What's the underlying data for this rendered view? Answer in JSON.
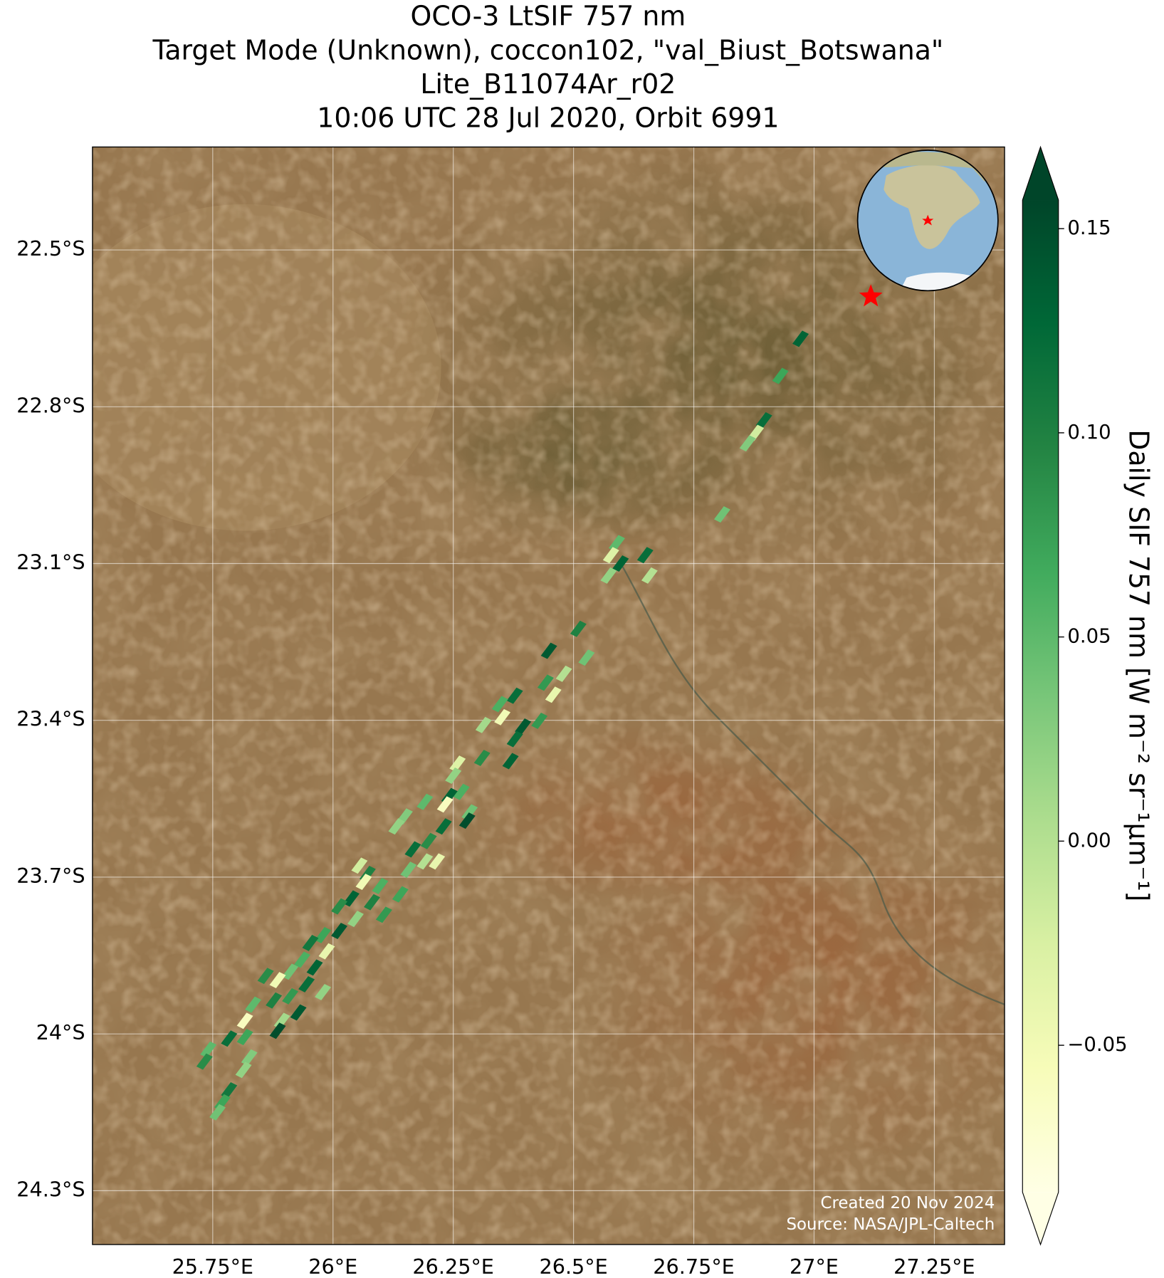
{
  "chart_data": {
    "type": "map",
    "title": [
      "OCO-3 LtSIF 757 nm",
      "Target Mode (Unknown), coccon102, \"val_Biust_Botswana\"",
      "Lite_B11074Ar_r02",
      "10:06 UTC 28 Jul 2020, Orbit 6991"
    ],
    "xlim": [
      25.5,
      27.396
    ],
    "ylim": [
      -24.403,
      -22.303
    ],
    "xticks": [
      {
        "value": 25.75,
        "label": "25.75°E"
      },
      {
        "value": 26,
        "label": "26°E"
      },
      {
        "value": 26.25,
        "label": "26.25°E"
      },
      {
        "value": 26.5,
        "label": "26.5°E"
      },
      {
        "value": 26.75,
        "label": "26.75°E"
      },
      {
        "value": 27,
        "label": "27°E"
      },
      {
        "value": 27.25,
        "label": "27.25°E"
      }
    ],
    "yticks": [
      {
        "value": -22.5,
        "label": "22.5°S"
      },
      {
        "value": -22.8,
        "label": "22.8°S"
      },
      {
        "value": -23.1,
        "label": "23.1°S"
      },
      {
        "value": -23.4,
        "label": "23.4°S"
      },
      {
        "value": -23.7,
        "label": "23.7°S"
      },
      {
        "value": -24,
        "label": "24°S"
      },
      {
        "value": -24.3,
        "label": "24.3°S"
      }
    ],
    "grid": true,
    "target": {
      "lon": 27.118,
      "lat": -22.589,
      "color": "#ff0000"
    },
    "soundings": [
      {
        "lon": 26.972,
        "lat": -22.67,
        "sif": 0.13
      },
      {
        "lon": 26.93,
        "lat": -22.741,
        "sif": 0.07
      },
      {
        "lon": 26.896,
        "lat": -22.826,
        "sif": 0.12
      },
      {
        "lon": 26.879,
        "lat": -22.85,
        "sif": -0.02
      },
      {
        "lon": 26.862,
        "lat": -22.87,
        "sif": 0.03
      },
      {
        "lon": 26.809,
        "lat": -23.006,
        "sif": 0.04
      },
      {
        "lon": 26.649,
        "lat": -23.084,
        "sif": 0.12
      },
      {
        "lon": 26.658,
        "lat": -23.123,
        "sif": 0.0
      },
      {
        "lon": 26.59,
        "lat": -23.061,
        "sif": 0.05
      },
      {
        "lon": 26.578,
        "lat": -23.084,
        "sif": -0.03
      },
      {
        "lon": 26.573,
        "lat": -23.123,
        "sif": 0.02
      },
      {
        "lon": 26.598,
        "lat": -23.1,
        "sif": 0.13
      },
      {
        "lon": 26.51,
        "lat": -23.225,
        "sif": 0.1
      },
      {
        "lon": 26.449,
        "lat": -23.267,
        "sif": 0.14
      },
      {
        "lon": 26.527,
        "lat": -23.28,
        "sif": 0.04
      },
      {
        "lon": 26.48,
        "lat": -23.311,
        "sif": 0.0
      },
      {
        "lon": 26.442,
        "lat": -23.328,
        "sif": 0.08
      },
      {
        "lon": 26.458,
        "lat": -23.351,
        "sif": -0.04
      },
      {
        "lon": 26.378,
        "lat": -23.353,
        "sif": 0.12
      },
      {
        "lon": 26.347,
        "lat": -23.369,
        "sif": 0.06
      },
      {
        "lon": 26.352,
        "lat": -23.394,
        "sif": -0.05
      },
      {
        "lon": 26.395,
        "lat": -23.412,
        "sif": 0.14
      },
      {
        "lon": 26.429,
        "lat": -23.401,
        "sif": 0.08
      },
      {
        "lon": 26.378,
        "lat": -23.436,
        "sif": 0.12
      },
      {
        "lon": 26.313,
        "lat": -23.409,
        "sif": 0.01
      },
      {
        "lon": 26.369,
        "lat": -23.478,
        "sif": 0.13
      },
      {
        "lon": 26.31,
        "lat": -23.472,
        "sif": 0.09
      },
      {
        "lon": 26.259,
        "lat": -23.483,
        "sif": -0.03
      },
      {
        "lon": 26.25,
        "lat": -23.506,
        "sif": 0.02
      },
      {
        "lon": 26.267,
        "lat": -23.537,
        "sif": 0.06
      },
      {
        "lon": 26.242,
        "lat": -23.545,
        "sif": 0.13
      },
      {
        "lon": 26.191,
        "lat": -23.556,
        "sif": 0.05
      },
      {
        "lon": 26.233,
        "lat": -23.561,
        "sif": -0.06
      },
      {
        "lon": 26.284,
        "lat": -23.576,
        "sif": 0.04
      },
      {
        "lon": 26.279,
        "lat": -23.592,
        "sif": 0.15
      },
      {
        "lon": 26.23,
        "lat": -23.603,
        "sif": 0.12
      },
      {
        "lon": 26.149,
        "lat": -23.584,
        "sif": 0.03
      },
      {
        "lon": 26.132,
        "lat": -23.603,
        "sif": 0.02
      },
      {
        "lon": 26.199,
        "lat": -23.631,
        "sif": 0.09
      },
      {
        "lon": 26.166,
        "lat": -23.647,
        "sif": 0.12
      },
      {
        "lon": 26.191,
        "lat": -23.67,
        "sif": 0.0
      },
      {
        "lon": 26.216,
        "lat": -23.67,
        "sif": -0.04
      },
      {
        "lon": 26.157,
        "lat": -23.686,
        "sif": 0.04
      },
      {
        "lon": 26.055,
        "lat": -23.678,
        "sif": -0.02
      },
      {
        "lon": 26.072,
        "lat": -23.694,
        "sif": 0.1
      },
      {
        "lon": 26.064,
        "lat": -23.709,
        "sif": -0.05
      },
      {
        "lon": 26.098,
        "lat": -23.717,
        "sif": 0.06
      },
      {
        "lon": 26.14,
        "lat": -23.733,
        "sif": 0.07
      },
      {
        "lon": 26.038,
        "lat": -23.741,
        "sif": 0.13
      },
      {
        "lon": 26.013,
        "lat": -23.756,
        "sif": 0.09
      },
      {
        "lon": 26.081,
        "lat": -23.748,
        "sif": 0.1
      },
      {
        "lon": 26.106,
        "lat": -23.772,
        "sif": 0.08
      },
      {
        "lon": 26.047,
        "lat": -23.78,
        "sif": 0.02
      },
      {
        "lon": 26.013,
        "lat": -23.803,
        "sif": 0.14
      },
      {
        "lon": 25.979,
        "lat": -23.811,
        "sif": 0.07
      },
      {
        "lon": 25.953,
        "lat": -23.826,
        "sif": 0.11
      },
      {
        "lon": 25.987,
        "lat": -23.842,
        "sif": -0.04
      },
      {
        "lon": 25.936,
        "lat": -23.858,
        "sif": 0.06
      },
      {
        "lon": 25.962,
        "lat": -23.873,
        "sif": 0.13
      },
      {
        "lon": 25.911,
        "lat": -23.881,
        "sif": 0.04
      },
      {
        "lon": 25.885,
        "lat": -23.897,
        "sif": -0.05
      },
      {
        "lon": 25.86,
        "lat": -23.889,
        "sif": 0.09
      },
      {
        "lon": 25.945,
        "lat": -23.905,
        "sif": 0.12
      },
      {
        "lon": 25.979,
        "lat": -23.92,
        "sif": 0.02
      },
      {
        "lon": 25.911,
        "lat": -23.928,
        "sif": 0.08
      },
      {
        "lon": 25.877,
        "lat": -23.936,
        "sif": 0.1
      },
      {
        "lon": 25.834,
        "lat": -23.944,
        "sif": 0.05
      },
      {
        "lon": 25.817,
        "lat": -23.975,
        "sif": -0.06
      },
      {
        "lon": 25.894,
        "lat": -23.975,
        "sif": 0.01
      },
      {
        "lon": 25.928,
        "lat": -23.959,
        "sif": 0.14
      },
      {
        "lon": 25.885,
        "lat": -23.994,
        "sif": 0.15
      },
      {
        "lon": 25.817,
        "lat": -24.006,
        "sif": 0.07
      },
      {
        "lon": 25.784,
        "lat": -24.009,
        "sif": 0.12
      },
      {
        "lon": 25.741,
        "lat": -24.03,
        "sif": 0.05
      },
      {
        "lon": 25.733,
        "lat": -24.053,
        "sif": 0.09
      },
      {
        "lon": 25.826,
        "lat": -24.045,
        "sif": 0.03
      },
      {
        "lon": 25.814,
        "lat": -24.069,
        "sif": 0.02
      },
      {
        "lon": 25.784,
        "lat": -24.108,
        "sif": 0.11
      },
      {
        "lon": 25.77,
        "lat": -24.131,
        "sif": 0.07
      },
      {
        "lon": 25.76,
        "lat": -24.15,
        "sif": 0.04
      }
    ],
    "colorbar": {
      "label": "Daily SIF 757 nm [W m⁻² sr⁻¹µm⁻¹]",
      "lim": [
        -0.086,
        0.157
      ],
      "ticks": [
        {
          "value": -0.05,
          "label": "−0.05"
        },
        {
          "value": 0,
          "label": "0.00"
        },
        0.05,
        {
          "value": 0.1,
          "label": "0.10"
        },
        0.15
      ],
      "colors": [
        "#ffffe5",
        "#f7fcb9",
        "#d9f0a3",
        "#addd8e",
        "#78c679",
        "#41ab5d",
        "#238443",
        "#006837",
        "#004529"
      ],
      "extend": "both"
    },
    "credits": [
      "Created 20 Nov 2024",
      "Source: NASA/JPL-Caltech"
    ]
  }
}
